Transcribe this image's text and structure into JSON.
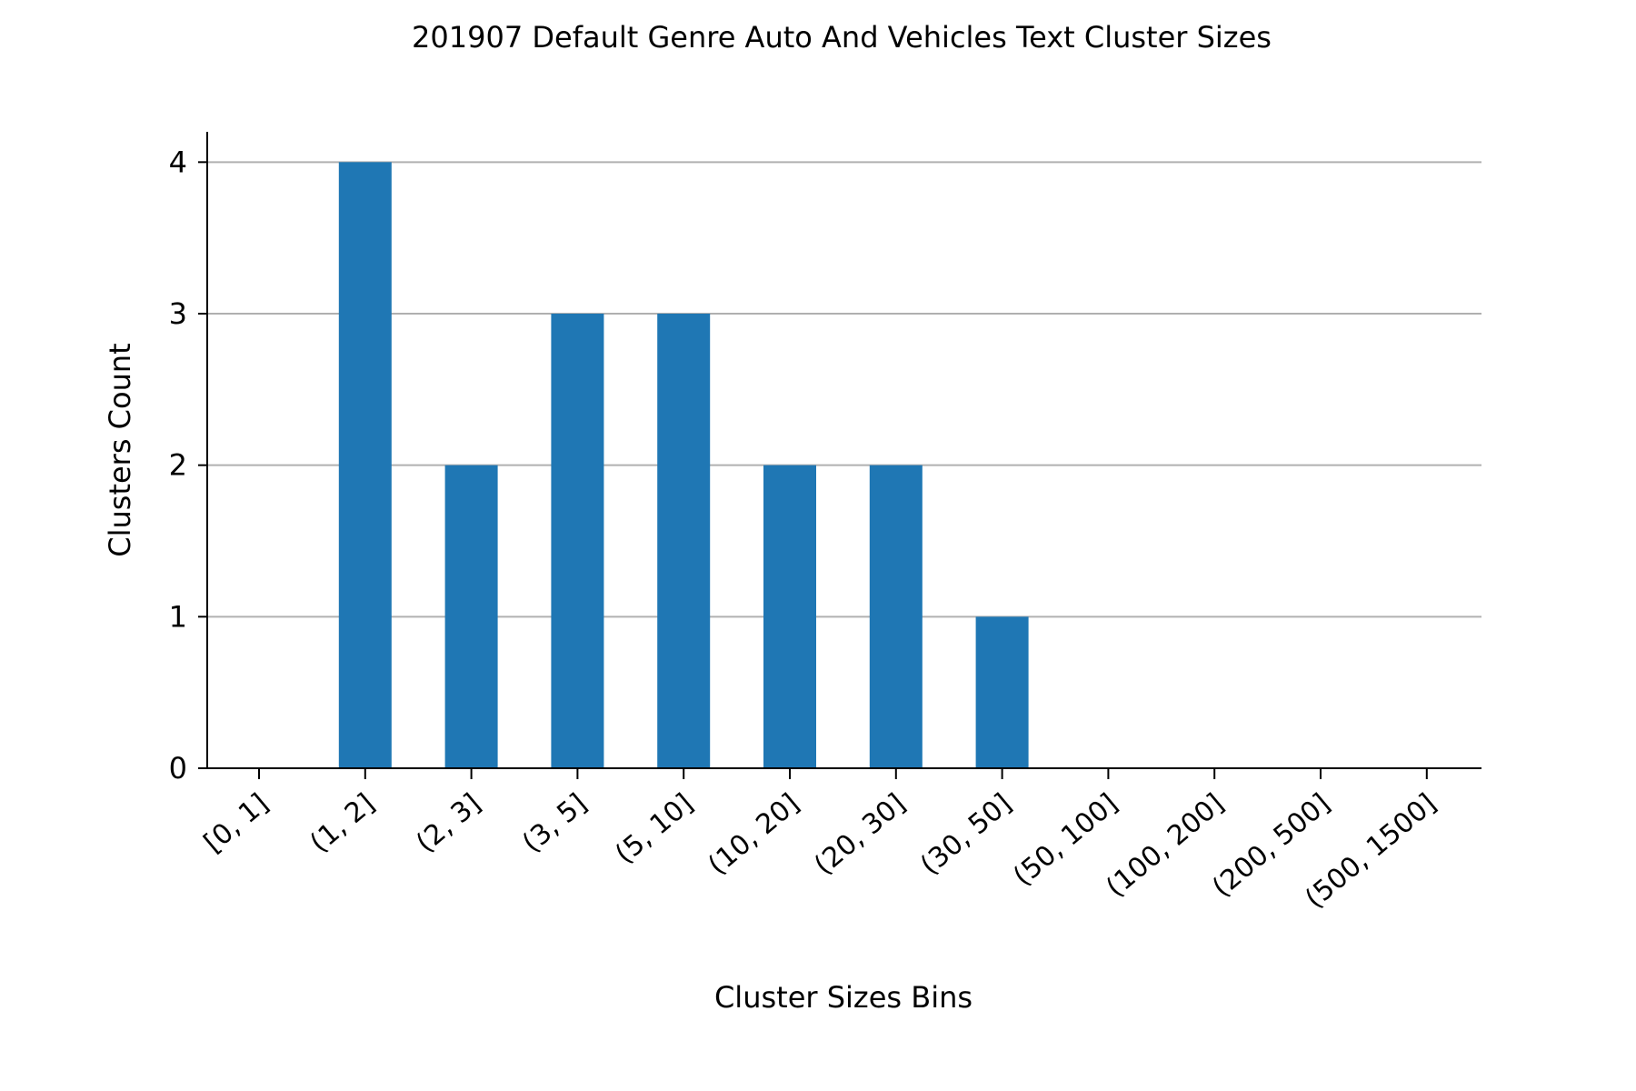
{
  "chart_data": {
    "type": "bar",
    "title": "201907 Default Genre Auto And Vehicles Text Cluster Sizes",
    "xlabel": "Cluster Sizes Bins",
    "ylabel": "Clusters Count",
    "categories": [
      "[0, 1]",
      "(1, 2]",
      "(2, 3]",
      "(3, 5]",
      "(5, 10]",
      "(10, 20]",
      "(20, 30]",
      "(30, 50]",
      "(50, 100]",
      "(100, 200]",
      "(200, 500]",
      "(500, 1500]"
    ],
    "values": [
      0,
      4,
      2,
      3,
      3,
      2,
      2,
      1,
      0,
      0,
      0,
      0
    ],
    "ylim": [
      0,
      4.2
    ],
    "yticks": [
      "0",
      "1",
      "2",
      "3",
      "4"
    ],
    "grid": "y",
    "colors": {
      "bar": "#1f77b4",
      "grid": "#b0b0b0",
      "axis": "#000000"
    }
  }
}
